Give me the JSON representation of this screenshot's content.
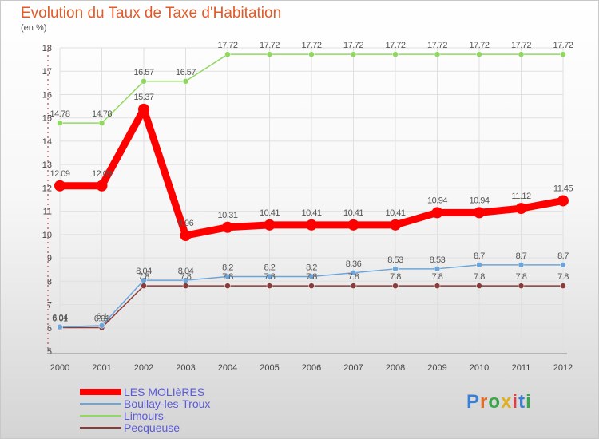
{
  "header": {
    "title": "Evolution du Taux de Taxe d'Habitation",
    "subtitle": "(en %)"
  },
  "logo": {
    "letters": [
      "P",
      "r",
      "o",
      "x",
      "i",
      "t",
      "i"
    ]
  },
  "colors": {
    "title": "#e05a2a",
    "legend_text": "#5b5bd6",
    "grid": "#e0e0e0",
    "axis": "#888888"
  },
  "chart_data": {
    "type": "line",
    "title": "Evolution du Taux de Taxe d'Habitation",
    "ylabel": "(en %)",
    "x": [
      "2000",
      "2001",
      "2002",
      "2003",
      "2004",
      "2005",
      "2006",
      "2007",
      "2008",
      "2009",
      "2010",
      "2011",
      "2012"
    ],
    "ylim": [
      5,
      18
    ],
    "yticks": [
      5,
      6,
      7,
      8,
      9,
      10,
      11,
      12,
      13,
      14,
      15,
      16,
      17,
      18
    ],
    "grid": true,
    "legend_position": "bottom-left",
    "series": [
      {
        "name": "LES MOLIèRES",
        "color": "#ff0000",
        "style": "thick",
        "values": [
          12.09,
          12.09,
          15.37,
          9.96,
          10.31,
          10.41,
          10.41,
          10.41,
          10.41,
          10.94,
          10.94,
          11.12,
          11.45
        ],
        "labels": [
          "12.09",
          "12.09",
          "15.37",
          "9.96",
          "10.31",
          "10.41",
          "10.41",
          "10.41",
          "10.41",
          "10.94",
          "10.94",
          "11.12",
          "11.45"
        ]
      },
      {
        "name": "Boullay-les-Troux",
        "color": "#6ea5d8",
        "style": "thin",
        "values": [
          6.04,
          6.1,
          8.04,
          8.04,
          8.2,
          8.2,
          8.2,
          8.36,
          8.53,
          8.53,
          8.7,
          8.7,
          8.7
        ],
        "labels": [
          "6.04",
          "6.1",
          "8.04",
          "8.04",
          "8.2",
          "8.2",
          "8.2",
          "8.36",
          "8.53",
          "8.53",
          "8.7",
          "8.7",
          "8.7"
        ]
      },
      {
        "name": "Limours",
        "color": "#90d860",
        "style": "thin",
        "values": [
          14.78,
          14.78,
          16.57,
          16.57,
          17.72,
          17.72,
          17.72,
          17.72,
          17.72,
          17.72,
          17.72,
          17.72,
          17.72
        ],
        "labels": [
          "14.78",
          "14.78",
          "16.57",
          "16.57",
          "17.72",
          "17.72",
          "17.72",
          "17.72",
          "17.72",
          "17.72",
          "17.72",
          "17.72",
          "17.72"
        ]
      },
      {
        "name": "Pecqueuse",
        "color": "#8b3a3a",
        "style": "thin",
        "values": [
          6.01,
          6.01,
          7.8,
          7.8,
          7.8,
          7.8,
          7.8,
          7.8,
          7.8,
          7.8,
          7.8,
          7.8,
          7.8
        ],
        "labels": [
          "6.01",
          "6.01",
          "7.8",
          "7.8",
          "7.8",
          "7.8",
          "7.8",
          "7.8",
          "7.8",
          "7.8",
          "7.8",
          "7.8",
          "7.8"
        ]
      }
    ]
  }
}
